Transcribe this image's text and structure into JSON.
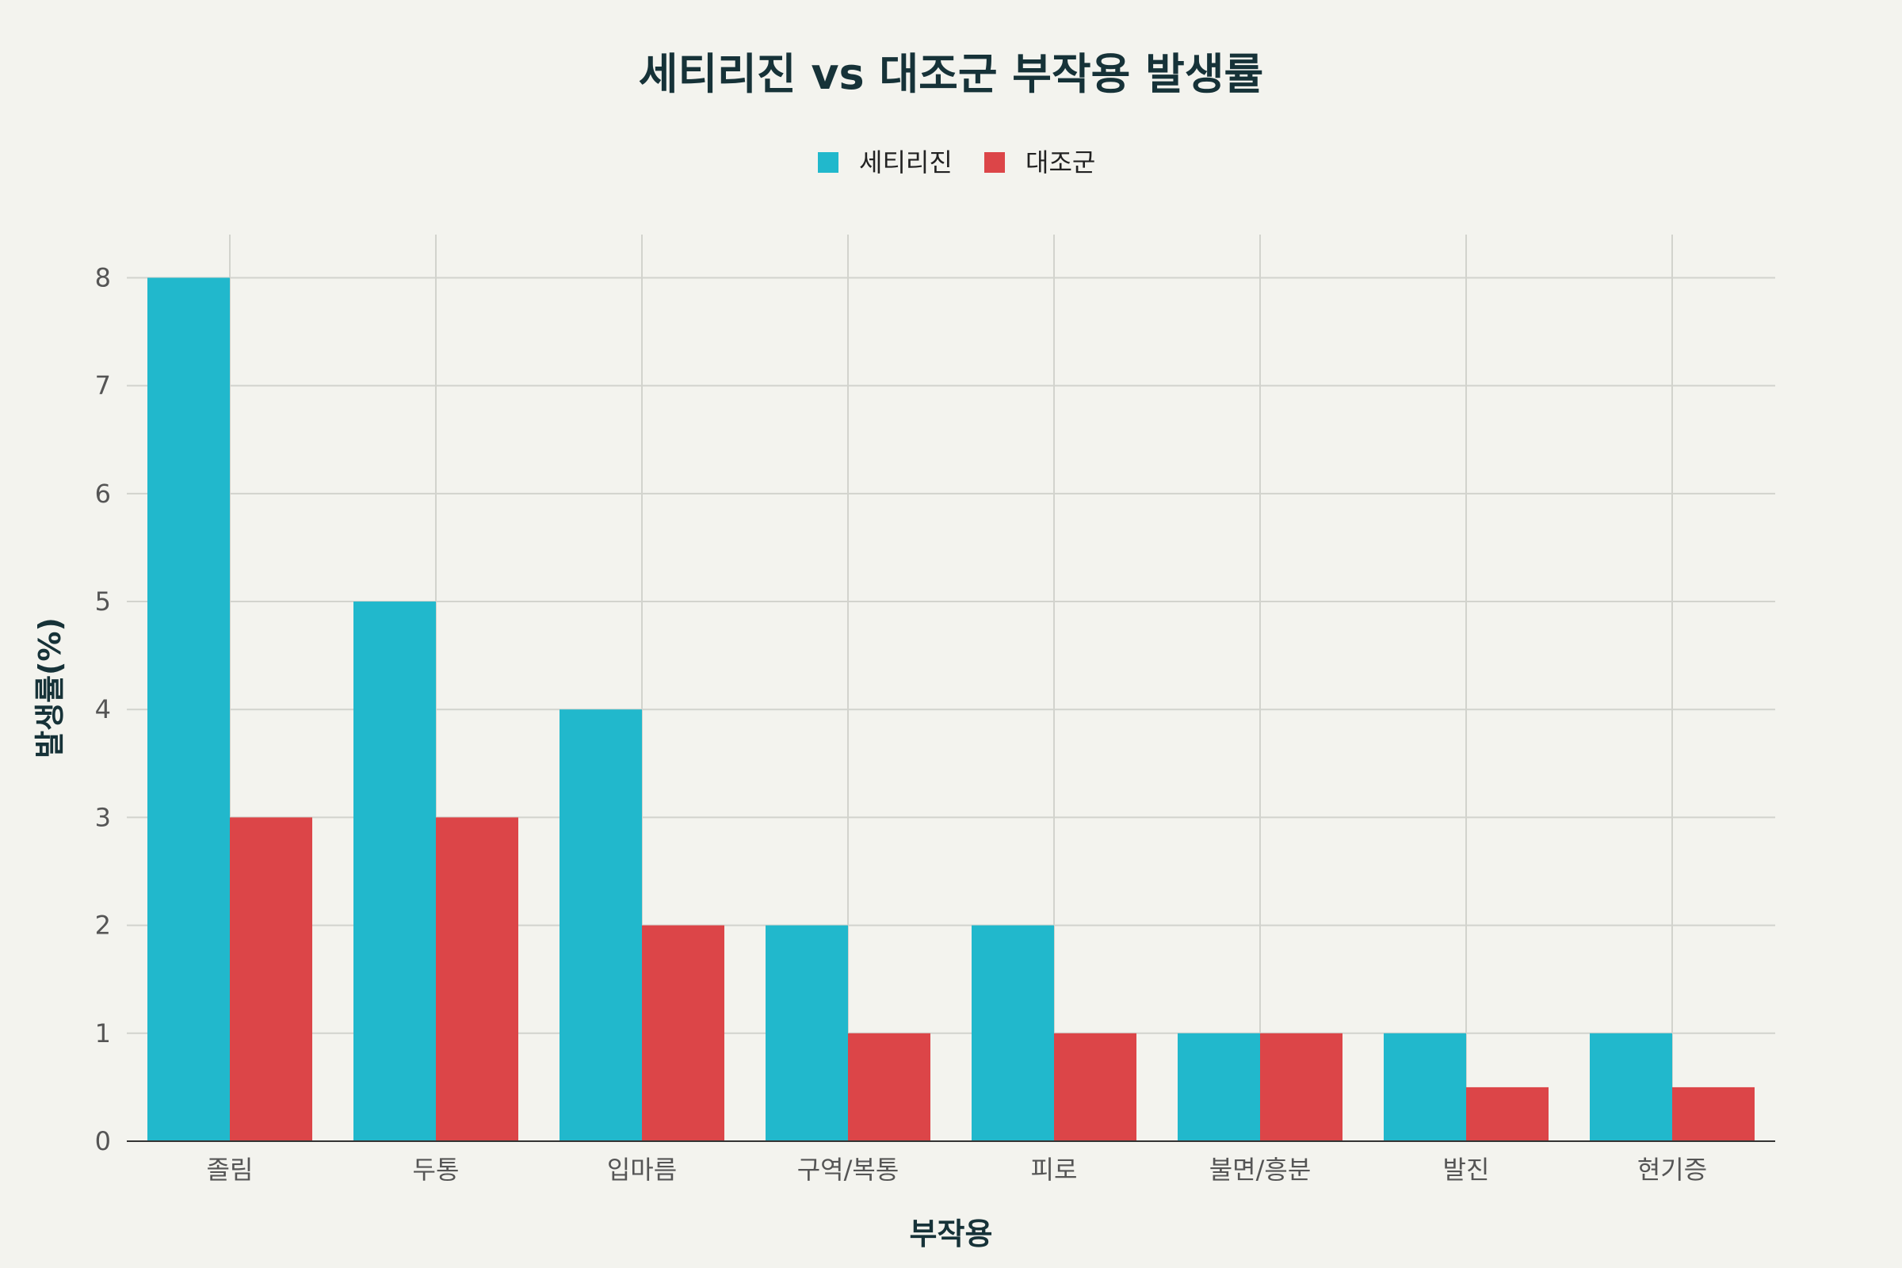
{
  "chart_data": {
    "type": "bar",
    "title": "세티리진 vs 대조군 부작용 발생률",
    "xlabel": "부작용",
    "ylabel": "발생률(%)",
    "categories": [
      "졸림",
      "두통",
      "입마름",
      "구역/복통",
      "피로",
      "불면/흥분",
      "발진",
      "현기증"
    ],
    "series": [
      {
        "name": "세티리진",
        "color": "#21b8cc",
        "values": [
          8,
          5,
          4,
          2,
          2,
          1,
          1,
          1
        ]
      },
      {
        "name": "대조군",
        "color": "#dc4548",
        "values": [
          3,
          3,
          2,
          1,
          1,
          1,
          0.5,
          0.5
        ]
      }
    ],
    "ylim": [
      0,
      8.4
    ],
    "yticks": [
      0,
      1,
      2,
      3,
      4,
      5,
      6,
      7,
      8
    ],
    "grid": true,
    "legend_position": "top-center"
  }
}
